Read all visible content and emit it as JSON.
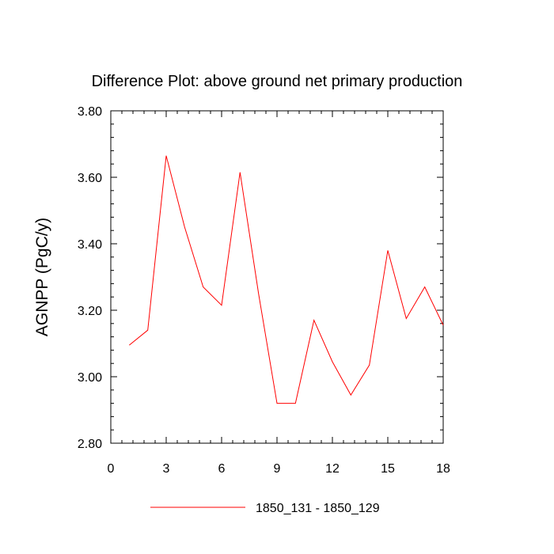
{
  "chart_data": {
    "type": "line",
    "title": "Difference Plot: above ground net primary production",
    "xlabel": "",
    "ylabel": "AGNPP  (PgC/y)",
    "xlim": [
      0,
      18
    ],
    "ylim": [
      2.8,
      3.8
    ],
    "xticks": [
      0,
      3,
      6,
      9,
      12,
      15,
      18
    ],
    "xtick_labels": [
      "0",
      "3",
      "6",
      "9",
      "12",
      "15",
      "18"
    ],
    "yticks": [
      2.8,
      3.0,
      3.2,
      3.4,
      3.6,
      3.8
    ],
    "ytick_labels": [
      "2.80",
      "3.00",
      "3.20",
      "3.40",
      "3.60",
      "3.80"
    ],
    "legend_position": "bottom",
    "grid": false,
    "series": [
      {
        "name": "1850_131 - 1850_129",
        "color": "#ff0000",
        "x": [
          1,
          2,
          3,
          4,
          5,
          6,
          7,
          8,
          9,
          10,
          11,
          12,
          13,
          14,
          15,
          16,
          17,
          18
        ],
        "values": [
          3.095,
          3.14,
          3.665,
          3.45,
          3.27,
          3.215,
          3.615,
          3.25,
          2.92,
          2.92,
          3.17,
          3.045,
          2.945,
          3.035,
          3.38,
          3.175,
          3.27,
          3.155
        ]
      }
    ]
  }
}
